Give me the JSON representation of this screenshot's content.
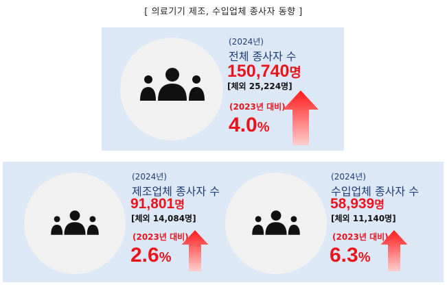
{
  "title": "[ 의료기기 제조, 수입업체 종사자 동향 ]",
  "icon": "people-group-icon",
  "colors": {
    "panel": "#dce8f6",
    "circle": "#f1f1f1",
    "accent_red": "#e8141e",
    "navy": "#1f3b73"
  },
  "cards": {
    "total": {
      "year": "(2024년)",
      "label": "전체 종사자 수",
      "value": "150,740",
      "unit": "명",
      "foreign": "[체외 25,224명]",
      "compare": "(2023년 대비)",
      "change": "4.0",
      "change_unit": "%"
    },
    "manufacture": {
      "year": "(2024년)",
      "label": "제조업체 종사자 수",
      "value": "91,801",
      "unit": "명",
      "foreign": "[체외 14,084명]",
      "compare": "(2023년 대비)",
      "change": "2.6",
      "change_unit": "%"
    },
    "import": {
      "year": "(2024년)",
      "label": "수입업체 종사자 수",
      "value": "58,939",
      "unit": "명",
      "foreign": "[체외 11,140명]",
      "compare": "(2023년 대비)",
      "change": "6.3",
      "change_unit": "%"
    }
  }
}
